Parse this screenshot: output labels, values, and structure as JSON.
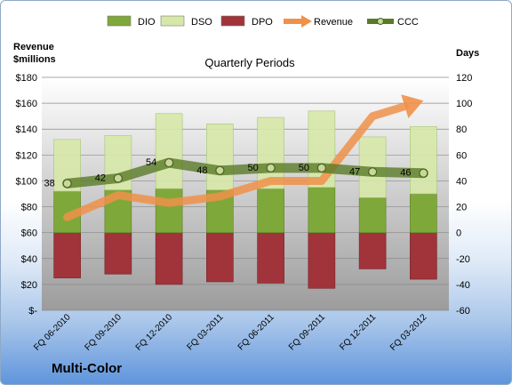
{
  "company_name": "Multi-Color",
  "chart_data": {
    "type": "bar",
    "title": "Quarterly Periods",
    "left_axis_label": [
      "Revenue",
      "$millions"
    ],
    "right_axis_label": "Days",
    "categories": [
      "FQ 06-2010",
      "FQ 09-2010",
      "FQ 12-2010",
      "FQ 03-2011",
      "FQ 06-2011",
      "FQ 09-2011",
      "FQ 12-2011",
      "FQ 03-2012"
    ],
    "left_ticks": [
      "$-",
      "$20",
      "$40",
      "$60",
      "$80",
      "$100",
      "$120",
      "$140",
      "$160",
      "$180"
    ],
    "right_ticks": [
      "-60",
      "-40",
      "-20",
      "0",
      "20",
      "40",
      "60",
      "80",
      "100",
      "120"
    ],
    "left_ylim": [
      0,
      180
    ],
    "right_ylim": [
      -60,
      120
    ],
    "grid": true,
    "legend_position": "top",
    "series": [
      {
        "name": "DIO",
        "axis": "right",
        "kind": "stacked-bar",
        "color": "#7fa83a",
        "values": [
          32,
          33,
          34,
          33,
          34,
          35,
          27,
          30
        ]
      },
      {
        "name": "DSO",
        "axis": "right",
        "kind": "stacked-bar",
        "color": "#d6e8a8",
        "values": [
          40,
          42,
          58,
          51,
          55,
          59,
          47,
          52
        ]
      },
      {
        "name": "DPO",
        "axis": "right",
        "kind": "bar-below-zero",
        "color": "#a0343a",
        "values": [
          -35,
          -32,
          -40,
          -38,
          -39,
          -43,
          -28,
          -36
        ]
      },
      {
        "name": "Revenue",
        "axis": "left",
        "kind": "line-arrow",
        "color": "#f0914a",
        "values": [
          72,
          89,
          83,
          88,
          100,
          100,
          150,
          162
        ]
      },
      {
        "name": "CCC",
        "axis": "right",
        "kind": "line-markers",
        "color": "#5a7a28",
        "values": [
          38,
          42,
          54,
          48,
          50,
          50,
          47,
          46
        ]
      }
    ]
  }
}
